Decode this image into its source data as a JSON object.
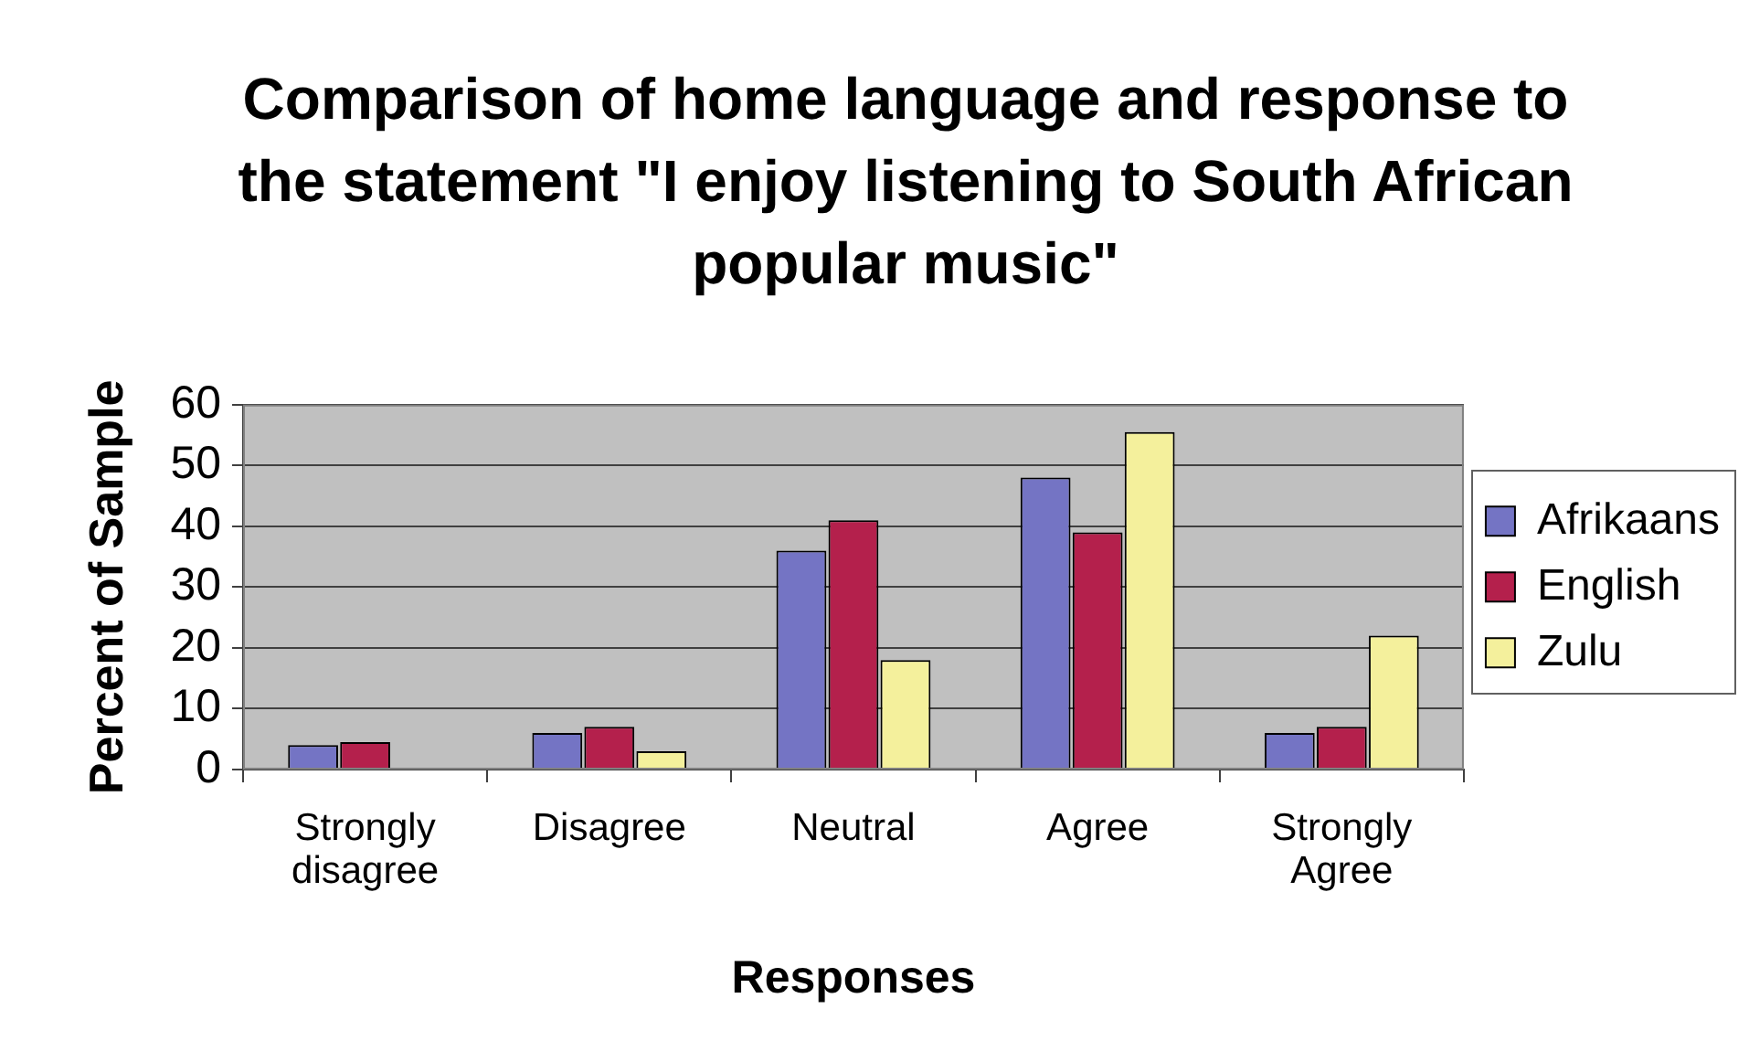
{
  "chart_data": {
    "type": "bar",
    "title": "Comparison of home language and response to the statement \"I enjoy listening to South African popular music\"",
    "xlabel": "Responses",
    "ylabel": "Percent of Sample",
    "categories": [
      "Strongly disagree",
      "Disagree",
      "Neutral",
      "Agree",
      "Strongly Agree"
    ],
    "series": [
      {
        "name": "Afrikaans",
        "color": "#7474c4",
        "values": [
          4,
          6,
          36,
          48,
          6
        ]
      },
      {
        "name": "English",
        "color": "#b4204c",
        "values": [
          4.5,
          7,
          41,
          39,
          7
        ]
      },
      {
        "name": "Zulu",
        "color": "#f4f09c",
        "values": [
          0,
          3,
          18,
          55.5,
          22
        ]
      }
    ],
    "ylim": [
      0,
      60
    ],
    "yticks": [
      0,
      10,
      20,
      30,
      40,
      50,
      60
    ],
    "grid": "y",
    "legend": "right"
  }
}
